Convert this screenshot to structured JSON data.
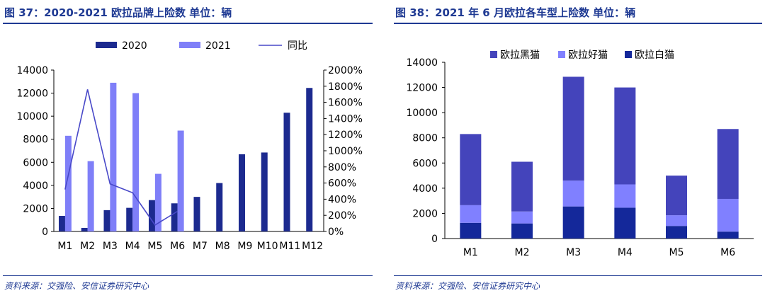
{
  "left": {
    "title": "图 37：2020-2021 欧拉品牌上险数  单位：辆",
    "source": "资料来源：交强险、安信证券研究中心"
  },
  "right": {
    "title": "图 38：2021 年 6 月欧拉各车型上险数  单位：辆",
    "source": "资料来源：交强险、安信证券研究中心"
  },
  "colors": {
    "title_blue": "#1f3a93",
    "series_2020": "#1c2a8f",
    "series_2021": "#7f7ff8",
    "yoy_line": "#4848c8",
    "black_cat": "#4444bb",
    "good_cat": "#8080ff",
    "white_cat": "#14289a"
  },
  "chart_data": [
    {
      "type": "bar",
      "categories": [
        "M1",
        "M2",
        "M3",
        "M4",
        "M5",
        "M6",
        "M7",
        "M8",
        "M9",
        "M10",
        "M11",
        "M12"
      ],
      "series": [
        {
          "name": "2020",
          "type": "bar",
          "axis": "left",
          "values": [
            1350,
            310,
            1850,
            2050,
            2720,
            2440,
            3000,
            4200,
            6700,
            6850,
            10300,
            12450
          ]
        },
        {
          "name": "2021",
          "type": "bar",
          "axis": "left",
          "values": [
            8300,
            6100,
            12900,
            12000,
            5000,
            8750,
            null,
            null,
            null,
            null,
            null,
            null
          ]
        },
        {
          "name": "同比",
          "type": "line",
          "axis": "right",
          "values": [
            520,
            1760,
            590,
            480,
            80,
            250,
            null,
            null,
            null,
            null,
            null,
            null
          ]
        }
      ],
      "ylim": [
        0,
        14000
      ],
      "yticks": [
        "0",
        "2000",
        "4000",
        "6000",
        "8000",
        "10000",
        "12000",
        "14000"
      ],
      "y2lim": [
        0,
        2000
      ],
      "y2ticks": [
        "0%",
        "200%",
        "400%",
        "600%",
        "800%",
        "1000%",
        "1200%",
        "1400%",
        "1600%",
        "1800%",
        "2000%"
      ],
      "legend_position": "top",
      "grid": false
    },
    {
      "type": "bar",
      "stacked": true,
      "categories": [
        "M1",
        "M2",
        "M3",
        "M4",
        "M5",
        "M6"
      ],
      "series": [
        {
          "name": "欧拉黑猫",
          "values": [
            5650,
            3950,
            8250,
            7700,
            3150,
            5550
          ]
        },
        {
          "name": "欧拉好猫",
          "values": [
            1400,
            950,
            2050,
            1850,
            850,
            2600
          ]
        },
        {
          "name": "欧拉白猫",
          "values": [
            1250,
            1200,
            2550,
            2450,
            1000,
            550
          ]
        }
      ],
      "ylim": [
        0,
        14000
      ],
      "yticks": [
        "0",
        "2000",
        "4000",
        "6000",
        "8000",
        "10000",
        "12000",
        "14000"
      ],
      "legend_position": "top",
      "grid": false
    }
  ]
}
